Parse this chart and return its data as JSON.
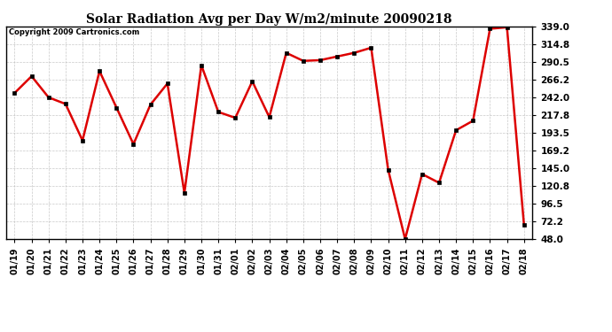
{
  "title": "Solar Radiation Avg per Day W/m2/minute 20090218",
  "copyright": "Copyright 2009 Cartronics.com",
  "labels": [
    "01/19",
    "01/20",
    "01/21",
    "01/22",
    "01/23",
    "01/24",
    "01/25",
    "01/26",
    "01/27",
    "01/28",
    "01/29",
    "01/30",
    "01/31",
    "02/01",
    "02/02",
    "02/03",
    "02/04",
    "02/05",
    "02/06",
    "02/07",
    "02/08",
    "02/09",
    "02/10",
    "02/11",
    "02/12",
    "02/13",
    "02/14",
    "02/15",
    "02/16",
    "02/17",
    "02/18"
  ],
  "values": [
    248,
    271,
    242,
    233,
    183,
    278,
    228,
    178,
    232,
    261,
    111,
    286,
    222,
    214,
    264,
    215,
    303,
    292,
    293,
    298,
    303,
    310,
    143,
    48,
    137,
    125,
    197,
    210,
    336,
    338,
    68
  ],
  "line_color": "#dd0000",
  "marker_color": "#000000",
  "bg_color": "#ffffff",
  "grid_color": "#bbbbbb",
  "ylim_min": 48.0,
  "ylim_max": 339.0,
  "yticks": [
    48.0,
    72.2,
    96.5,
    120.8,
    145.0,
    169.2,
    193.5,
    217.8,
    242.0,
    266.2,
    290.5,
    314.8,
    339.0
  ],
  "title_fontsize": 10,
  "copyright_fontsize": 6,
  "xlabel_fontsize": 7,
  "ylabel_fontsize": 7.5
}
